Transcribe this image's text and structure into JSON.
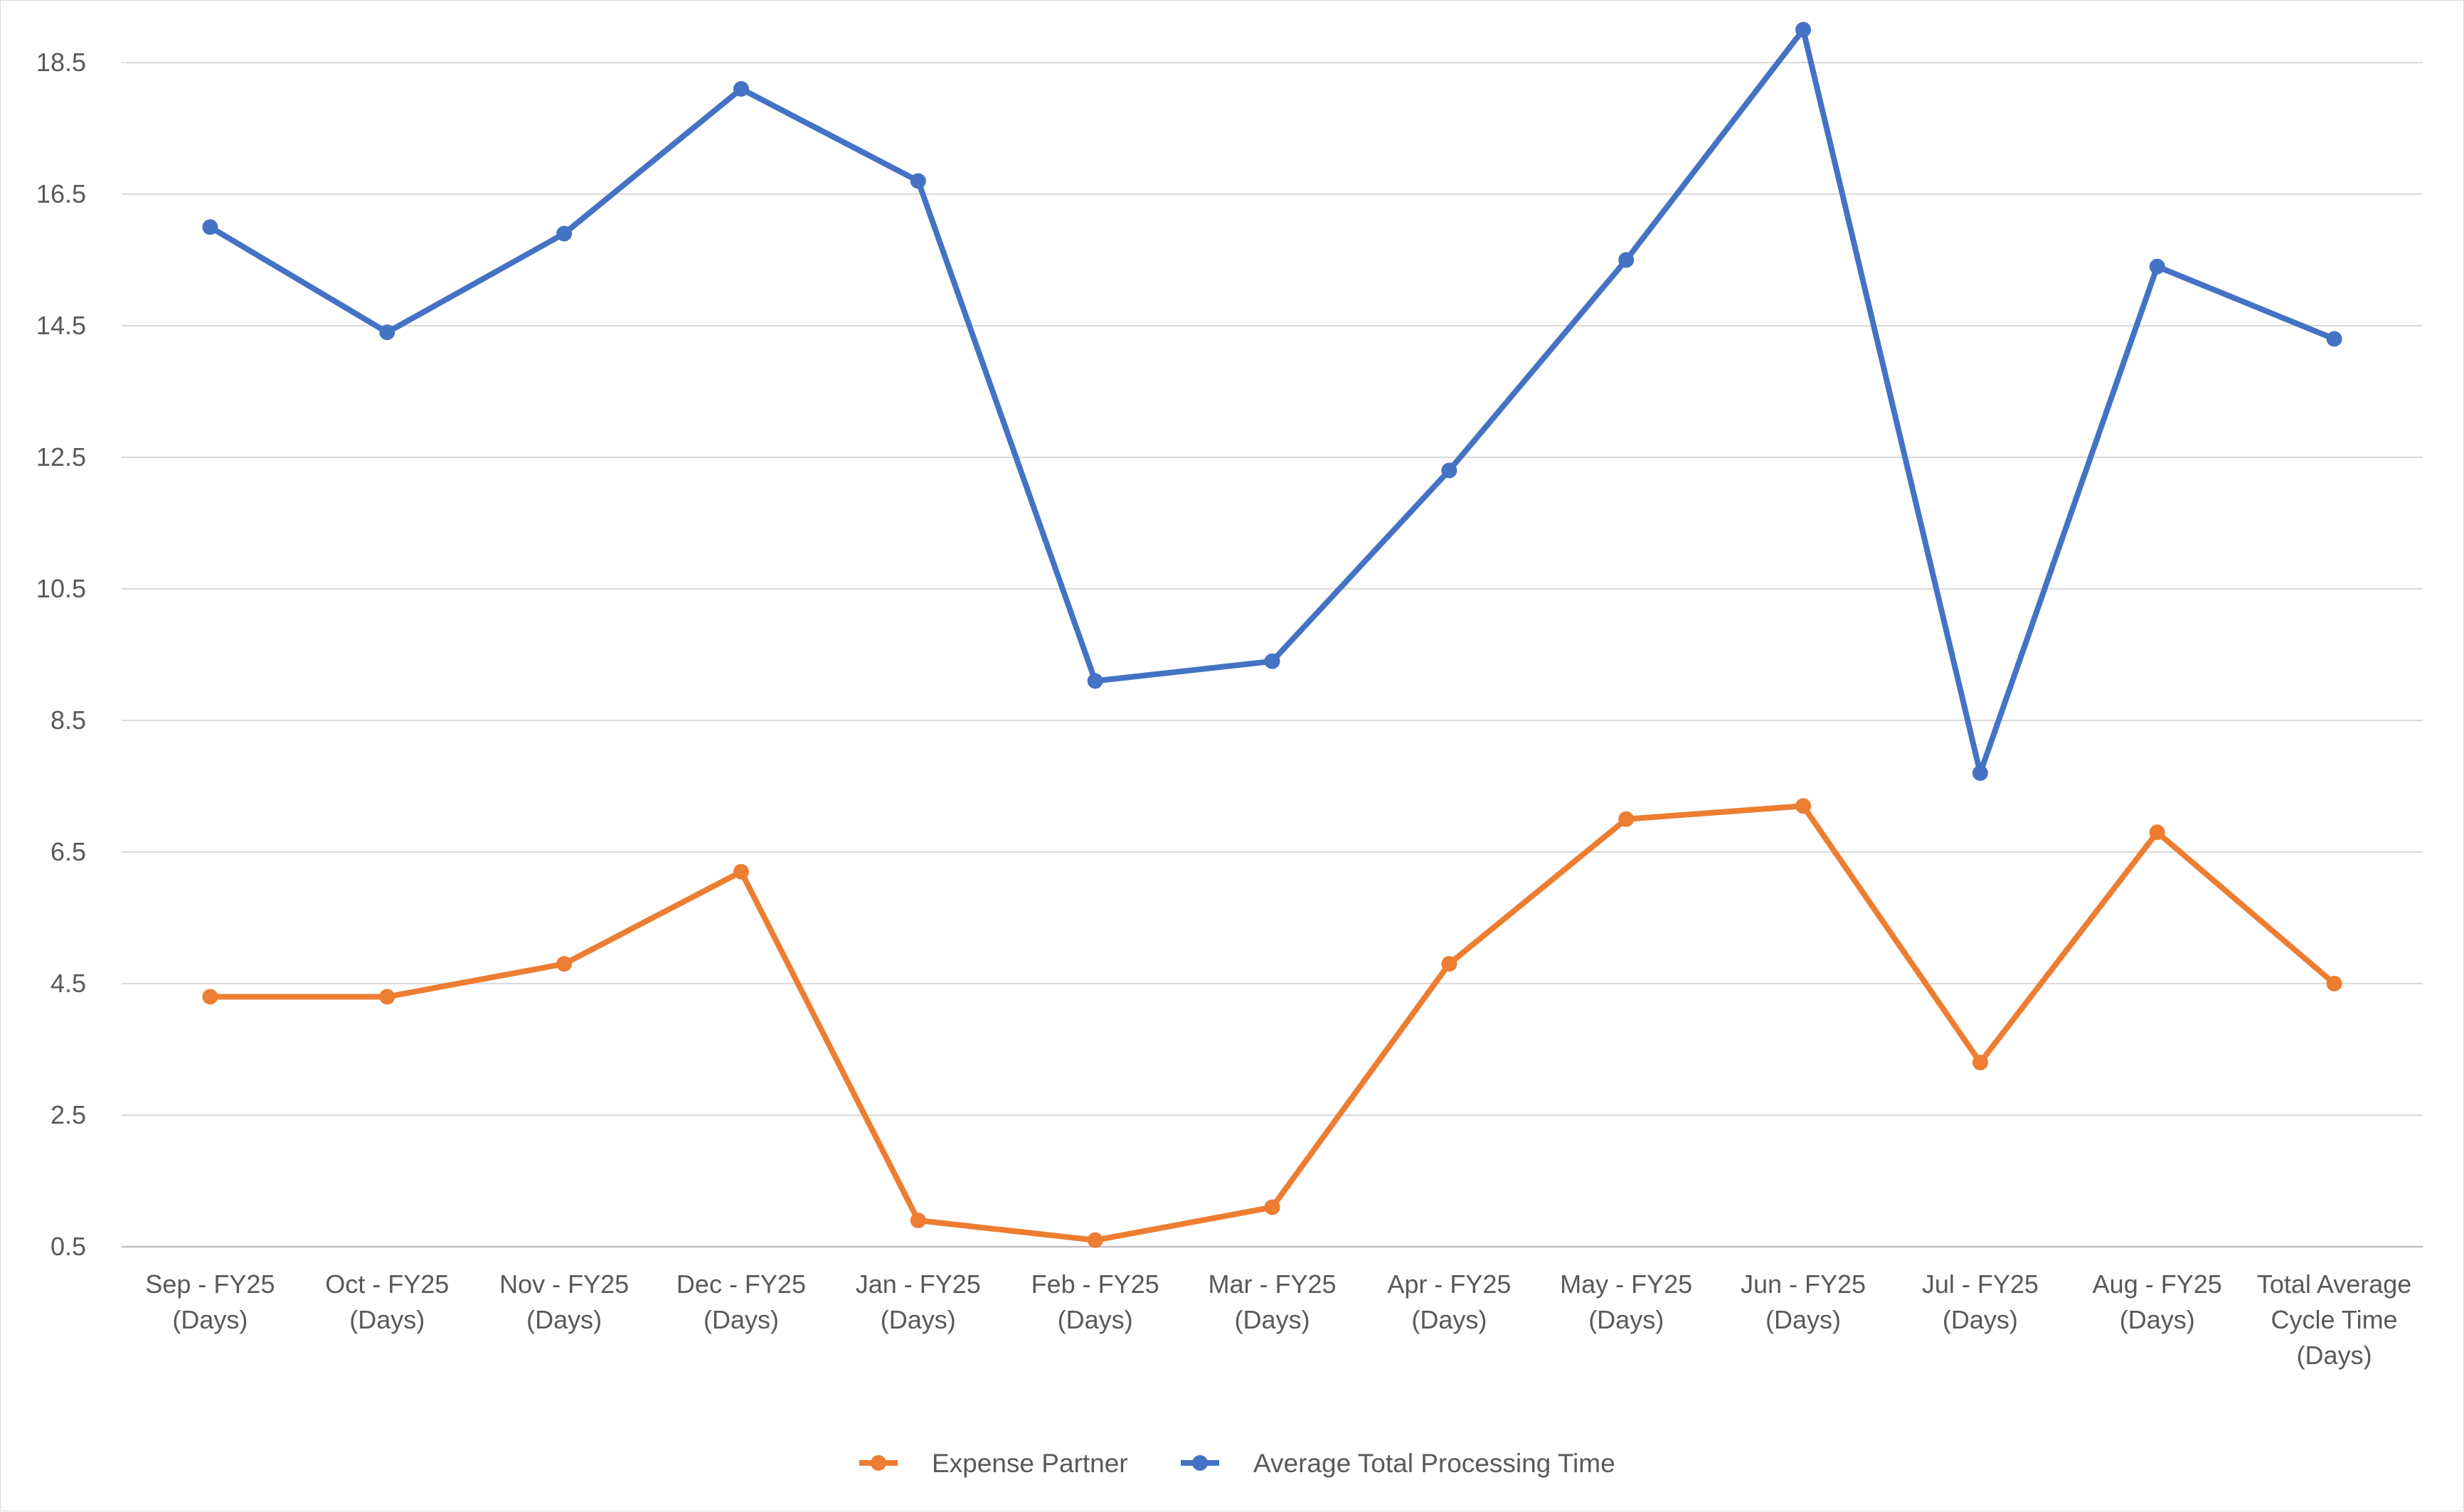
{
  "chart_data": {
    "type": "line",
    "title": "",
    "xlabel": "",
    "ylabel": "",
    "ylim": [
      0.5,
      19.5
    ],
    "yticks": [
      "0.5",
      "2.5",
      "4.5",
      "6.5",
      "8.5",
      "10.5",
      "12.5",
      "14.5",
      "16.5",
      "18.5"
    ],
    "grid": true,
    "legend_position": "bottom",
    "categories": [
      [
        "Sep - FY25",
        "(Days)"
      ],
      [
        "Oct - FY25",
        "(Days)"
      ],
      [
        "Nov - FY25",
        "(Days)"
      ],
      [
        "Dec - FY25",
        "(Days)"
      ],
      [
        "Jan - FY25",
        "(Days)"
      ],
      [
        "Feb - FY25",
        "(Days)"
      ],
      [
        "Mar - FY25",
        "(Days)"
      ],
      [
        "Apr - FY25",
        "(Days)"
      ],
      [
        "May - FY25",
        "(Days)"
      ],
      [
        "Jun - FY25",
        "(Days)"
      ],
      [
        "Jul - FY25",
        "(Days)"
      ],
      [
        "Aug - FY25",
        "(Days)"
      ],
      [
        "Total Average",
        "Cycle Time",
        "(Days)"
      ]
    ],
    "series": [
      {
        "name": "Expense Partner",
        "color": "#ED7D31",
        "values": [
          4.3,
          4.3,
          4.8,
          6.2,
          0.9,
          0.6,
          1.1,
          4.8,
          7.0,
          7.2,
          3.3,
          6.8,
          4.5
        ]
      },
      {
        "name": "Average Total Processing Time",
        "color": "#4472C4",
        "values": [
          16.0,
          14.4,
          15.9,
          18.1,
          16.7,
          9.1,
          9.4,
          12.3,
          15.5,
          19.0,
          7.7,
          15.4,
          14.3
        ]
      }
    ],
    "gridline_color": "#d9d9d9",
    "axis_color": "#bfbfbf"
  }
}
